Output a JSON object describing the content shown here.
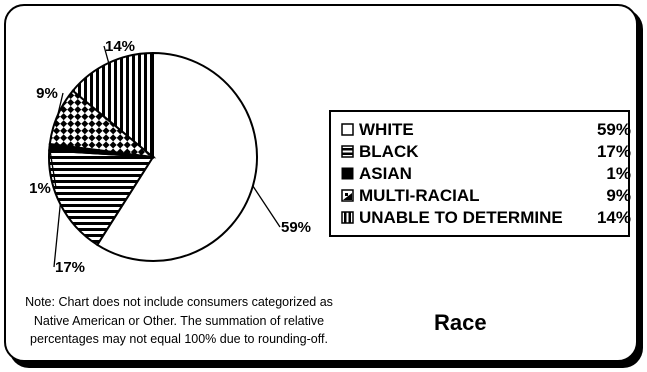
{
  "chart_data": {
    "type": "pie",
    "title": "Race",
    "slices": [
      {
        "key": "white",
        "label": "WHITE",
        "value": 59,
        "value_text": "59%",
        "pattern": "blank"
      },
      {
        "key": "black",
        "label": "BLACK",
        "value": 17,
        "value_text": "17%",
        "pattern": "horizontal-stripes"
      },
      {
        "key": "asian",
        "label": "ASIAN",
        "value": 1,
        "value_text": "1%",
        "pattern": "solid"
      },
      {
        "key": "multi",
        "label": "MULTI-RACIAL",
        "value": 9,
        "value_text": "9%",
        "pattern": "checker"
      },
      {
        "key": "unable",
        "label": "UNABLE TO DETERMINE",
        "value": 14,
        "value_text": "14%",
        "pattern": "vertical-stripes"
      }
    ],
    "start_angle_deg": 0,
    "direction": "clockwise",
    "legend_placement": "right",
    "colors": {
      "stroke": "#000000",
      "fill": "#ffffff"
    }
  },
  "note": {
    "line1": "Note: Chart does not include consumers categorized as",
    "line2": "Native American or Other.  The summation of relative",
    "line3": "percentages may not equal 100% due to rounding-off."
  }
}
